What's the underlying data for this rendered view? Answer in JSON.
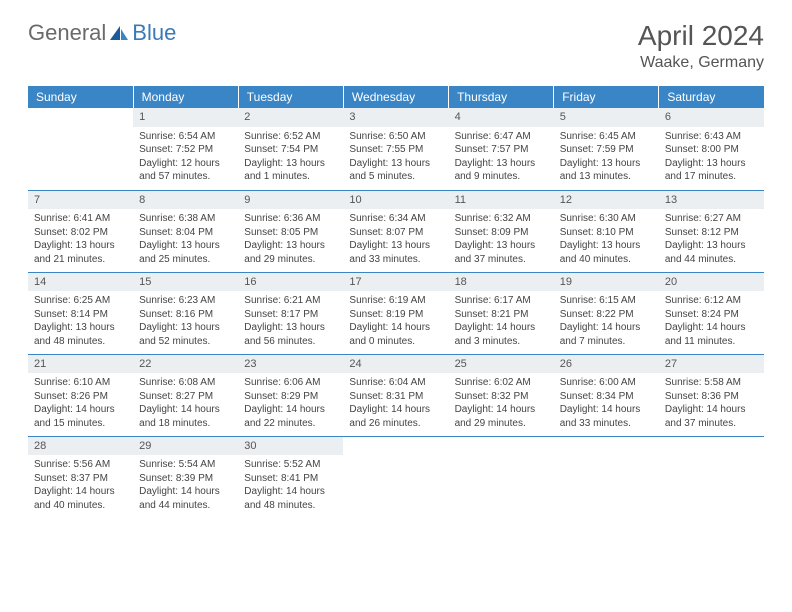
{
  "logo": {
    "general": "General",
    "blue": "Blue"
  },
  "title": "April 2024",
  "location": "Waake, Germany",
  "colors": {
    "header_bg": "#3a85c6",
    "header_text": "#ffffff",
    "daybar_bg": "#eceff1",
    "border": "#3a85c6",
    "title_color": "#555555",
    "body_bg": "#ffffff"
  },
  "weekdays": [
    "Sunday",
    "Monday",
    "Tuesday",
    "Wednesday",
    "Thursday",
    "Friday",
    "Saturday"
  ],
  "weeks": [
    [
      null,
      {
        "n": "1",
        "sr": "Sunrise: 6:54 AM",
        "ss": "Sunset: 7:52 PM",
        "d1": "Daylight: 12 hours",
        "d2": "and 57 minutes."
      },
      {
        "n": "2",
        "sr": "Sunrise: 6:52 AM",
        "ss": "Sunset: 7:54 PM",
        "d1": "Daylight: 13 hours",
        "d2": "and 1 minutes."
      },
      {
        "n": "3",
        "sr": "Sunrise: 6:50 AM",
        "ss": "Sunset: 7:55 PM",
        "d1": "Daylight: 13 hours",
        "d2": "and 5 minutes."
      },
      {
        "n": "4",
        "sr": "Sunrise: 6:47 AM",
        "ss": "Sunset: 7:57 PM",
        "d1": "Daylight: 13 hours",
        "d2": "and 9 minutes."
      },
      {
        "n": "5",
        "sr": "Sunrise: 6:45 AM",
        "ss": "Sunset: 7:59 PM",
        "d1": "Daylight: 13 hours",
        "d2": "and 13 minutes."
      },
      {
        "n": "6",
        "sr": "Sunrise: 6:43 AM",
        "ss": "Sunset: 8:00 PM",
        "d1": "Daylight: 13 hours",
        "d2": "and 17 minutes."
      }
    ],
    [
      {
        "n": "7",
        "sr": "Sunrise: 6:41 AM",
        "ss": "Sunset: 8:02 PM",
        "d1": "Daylight: 13 hours",
        "d2": "and 21 minutes."
      },
      {
        "n": "8",
        "sr": "Sunrise: 6:38 AM",
        "ss": "Sunset: 8:04 PM",
        "d1": "Daylight: 13 hours",
        "d2": "and 25 minutes."
      },
      {
        "n": "9",
        "sr": "Sunrise: 6:36 AM",
        "ss": "Sunset: 8:05 PM",
        "d1": "Daylight: 13 hours",
        "d2": "and 29 minutes."
      },
      {
        "n": "10",
        "sr": "Sunrise: 6:34 AM",
        "ss": "Sunset: 8:07 PM",
        "d1": "Daylight: 13 hours",
        "d2": "and 33 minutes."
      },
      {
        "n": "11",
        "sr": "Sunrise: 6:32 AM",
        "ss": "Sunset: 8:09 PM",
        "d1": "Daylight: 13 hours",
        "d2": "and 37 minutes."
      },
      {
        "n": "12",
        "sr": "Sunrise: 6:30 AM",
        "ss": "Sunset: 8:10 PM",
        "d1": "Daylight: 13 hours",
        "d2": "and 40 minutes."
      },
      {
        "n": "13",
        "sr": "Sunrise: 6:27 AM",
        "ss": "Sunset: 8:12 PM",
        "d1": "Daylight: 13 hours",
        "d2": "and 44 minutes."
      }
    ],
    [
      {
        "n": "14",
        "sr": "Sunrise: 6:25 AM",
        "ss": "Sunset: 8:14 PM",
        "d1": "Daylight: 13 hours",
        "d2": "and 48 minutes."
      },
      {
        "n": "15",
        "sr": "Sunrise: 6:23 AM",
        "ss": "Sunset: 8:16 PM",
        "d1": "Daylight: 13 hours",
        "d2": "and 52 minutes."
      },
      {
        "n": "16",
        "sr": "Sunrise: 6:21 AM",
        "ss": "Sunset: 8:17 PM",
        "d1": "Daylight: 13 hours",
        "d2": "and 56 minutes."
      },
      {
        "n": "17",
        "sr": "Sunrise: 6:19 AM",
        "ss": "Sunset: 8:19 PM",
        "d1": "Daylight: 14 hours",
        "d2": "and 0 minutes."
      },
      {
        "n": "18",
        "sr": "Sunrise: 6:17 AM",
        "ss": "Sunset: 8:21 PM",
        "d1": "Daylight: 14 hours",
        "d2": "and 3 minutes."
      },
      {
        "n": "19",
        "sr": "Sunrise: 6:15 AM",
        "ss": "Sunset: 8:22 PM",
        "d1": "Daylight: 14 hours",
        "d2": "and 7 minutes."
      },
      {
        "n": "20",
        "sr": "Sunrise: 6:12 AM",
        "ss": "Sunset: 8:24 PM",
        "d1": "Daylight: 14 hours",
        "d2": "and 11 minutes."
      }
    ],
    [
      {
        "n": "21",
        "sr": "Sunrise: 6:10 AM",
        "ss": "Sunset: 8:26 PM",
        "d1": "Daylight: 14 hours",
        "d2": "and 15 minutes."
      },
      {
        "n": "22",
        "sr": "Sunrise: 6:08 AM",
        "ss": "Sunset: 8:27 PM",
        "d1": "Daylight: 14 hours",
        "d2": "and 18 minutes."
      },
      {
        "n": "23",
        "sr": "Sunrise: 6:06 AM",
        "ss": "Sunset: 8:29 PM",
        "d1": "Daylight: 14 hours",
        "d2": "and 22 minutes."
      },
      {
        "n": "24",
        "sr": "Sunrise: 6:04 AM",
        "ss": "Sunset: 8:31 PM",
        "d1": "Daylight: 14 hours",
        "d2": "and 26 minutes."
      },
      {
        "n": "25",
        "sr": "Sunrise: 6:02 AM",
        "ss": "Sunset: 8:32 PM",
        "d1": "Daylight: 14 hours",
        "d2": "and 29 minutes."
      },
      {
        "n": "26",
        "sr": "Sunrise: 6:00 AM",
        "ss": "Sunset: 8:34 PM",
        "d1": "Daylight: 14 hours",
        "d2": "and 33 minutes."
      },
      {
        "n": "27",
        "sr": "Sunrise: 5:58 AM",
        "ss": "Sunset: 8:36 PM",
        "d1": "Daylight: 14 hours",
        "d2": "and 37 minutes."
      }
    ],
    [
      {
        "n": "28",
        "sr": "Sunrise: 5:56 AM",
        "ss": "Sunset: 8:37 PM",
        "d1": "Daylight: 14 hours",
        "d2": "and 40 minutes."
      },
      {
        "n": "29",
        "sr": "Sunrise: 5:54 AM",
        "ss": "Sunset: 8:39 PM",
        "d1": "Daylight: 14 hours",
        "d2": "and 44 minutes."
      },
      {
        "n": "30",
        "sr": "Sunrise: 5:52 AM",
        "ss": "Sunset: 8:41 PM",
        "d1": "Daylight: 14 hours",
        "d2": "and 48 minutes."
      },
      null,
      null,
      null,
      null
    ]
  ]
}
